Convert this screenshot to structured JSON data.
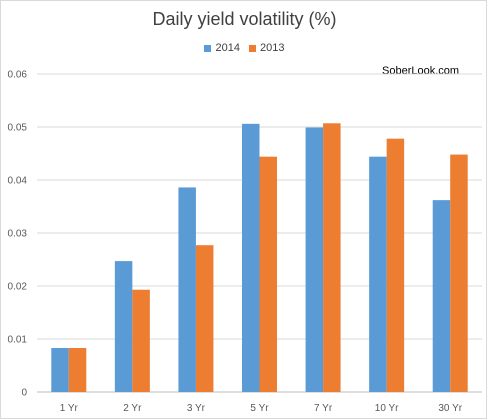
{
  "chart_data": {
    "type": "bar",
    "title": "Daily yield volatility (%)",
    "categories": [
      "1 Yr",
      "2 Yr",
      "3 Yr",
      "5 Yr",
      "7 Yr",
      "10 Yr",
      "30 Yr"
    ],
    "series": [
      {
        "name": "2014",
        "color": "#5b9bd5",
        "values": [
          0.0083,
          0.0247,
          0.0386,
          0.0506,
          0.0499,
          0.0444,
          0.0362
        ]
      },
      {
        "name": "2013",
        "color": "#ed7d31",
        "values": [
          0.0083,
          0.0193,
          0.0277,
          0.0444,
          0.0507,
          0.0478,
          0.0448
        ]
      }
    ],
    "ylim": [
      0,
      0.06
    ],
    "yticks": [
      "0",
      "0.01",
      "0.02",
      "0.03",
      "0.04",
      "0.05",
      "0.06"
    ],
    "grid": true,
    "legend_position": "top",
    "watermark": "SoberLook.com"
  }
}
